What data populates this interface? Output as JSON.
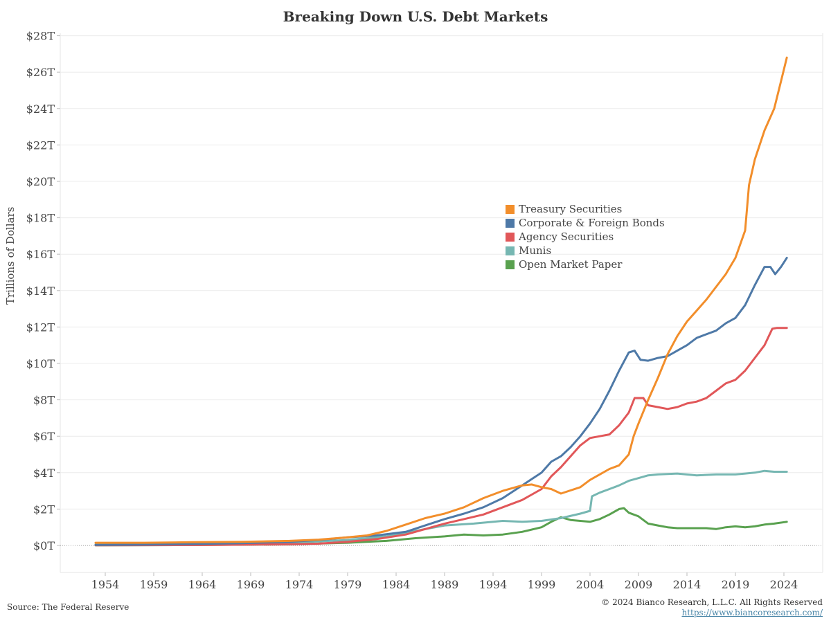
{
  "chart_data": {
    "type": "line",
    "title": "Breaking Down U.S. Debt Markets",
    "ylabel": "Trillions of Dollars",
    "xlabel": "",
    "ylim": [
      -2.5,
      28.5
    ],
    "xlim": [
      1948.8,
      2028.5
    ],
    "x_ticks": [
      1954,
      1959,
      1964,
      1969,
      1974,
      1979,
      1984,
      1989,
      1994,
      1999,
      2004,
      2009,
      2014,
      2019,
      2024
    ],
    "y_ticks": [
      0,
      2,
      4,
      6,
      8,
      10,
      12,
      14,
      16,
      18,
      20,
      22,
      24,
      26,
      28
    ],
    "y_tick_labels": [
      "$0T",
      "$2T",
      "$4T",
      "$6T",
      "$8T",
      "$10T",
      "$12T",
      "$14T",
      "$16T",
      "$18T",
      "$20T",
      "$22T",
      "$24T",
      "$26T",
      "$28T"
    ],
    "grid": "horizontal",
    "legend_position": "center-right",
    "series": [
      {
        "name": "Treasury Securities",
        "color": "#f28e2b",
        "points": [
          [
            1953,
            0.15
          ],
          [
            1958,
            0.15
          ],
          [
            1963,
            0.18
          ],
          [
            1968,
            0.2
          ],
          [
            1973,
            0.25
          ],
          [
            1976,
            0.32
          ],
          [
            1979,
            0.45
          ],
          [
            1981,
            0.55
          ],
          [
            1983,
            0.8
          ],
          [
            1985,
            1.15
          ],
          [
            1987,
            1.5
          ],
          [
            1989,
            1.75
          ],
          [
            1991,
            2.1
          ],
          [
            1993,
            2.6
          ],
          [
            1995,
            3.0
          ],
          [
            1997,
            3.3
          ],
          [
            1998,
            3.35
          ],
          [
            1999,
            3.2
          ],
          [
            2000,
            3.1
          ],
          [
            2001,
            2.85
          ],
          [
            2003,
            3.2
          ],
          [
            2004,
            3.6
          ],
          [
            2005,
            3.9
          ],
          [
            2006,
            4.2
          ],
          [
            2007,
            4.4
          ],
          [
            2008,
            5.0
          ],
          [
            2008.5,
            6.0
          ],
          [
            2009,
            6.7
          ],
          [
            2010,
            8.0
          ],
          [
            2011,
            9.2
          ],
          [
            2012,
            10.5
          ],
          [
            2013,
            11.5
          ],
          [
            2014,
            12.3
          ],
          [
            2015,
            12.9
          ],
          [
            2016,
            13.5
          ],
          [
            2017,
            14.2
          ],
          [
            2018,
            14.9
          ],
          [
            2019,
            15.8
          ],
          [
            2020,
            17.3
          ],
          [
            2020.4,
            19.8
          ],
          [
            2021,
            21.2
          ],
          [
            2022,
            22.8
          ],
          [
            2023,
            24.0
          ],
          [
            2023.7,
            25.5
          ],
          [
            2024.3,
            26.8
          ]
        ]
      },
      {
        "name": "Corporate & Foreign Bonds",
        "color": "#4e79a7",
        "points": [
          [
            1953,
            0.03
          ],
          [
            1958,
            0.05
          ],
          [
            1963,
            0.08
          ],
          [
            1968,
            0.12
          ],
          [
            1973,
            0.2
          ],
          [
            1976,
            0.3
          ],
          [
            1979,
            0.45
          ],
          [
            1982,
            0.55
          ],
          [
            1985,
            0.75
          ],
          [
            1987,
            1.1
          ],
          [
            1989,
            1.45
          ],
          [
            1991,
            1.75
          ],
          [
            1993,
            2.1
          ],
          [
            1995,
            2.6
          ],
          [
            1997,
            3.3
          ],
          [
            1999,
            4.0
          ],
          [
            2000,
            4.6
          ],
          [
            2001,
            4.9
          ],
          [
            2002,
            5.4
          ],
          [
            2003,
            6.0
          ],
          [
            2004,
            6.7
          ],
          [
            2005,
            7.5
          ],
          [
            2006,
            8.5
          ],
          [
            2007,
            9.6
          ],
          [
            2008,
            10.6
          ],
          [
            2008.6,
            10.7
          ],
          [
            2009.2,
            10.2
          ],
          [
            2010,
            10.15
          ],
          [
            2011,
            10.3
          ],
          [
            2012,
            10.4
          ],
          [
            2013,
            10.7
          ],
          [
            2014,
            11.0
          ],
          [
            2015,
            11.4
          ],
          [
            2016,
            11.6
          ],
          [
            2017,
            11.8
          ],
          [
            2018,
            12.2
          ],
          [
            2019,
            12.5
          ],
          [
            2020,
            13.2
          ],
          [
            2021,
            14.3
          ],
          [
            2022,
            15.3
          ],
          [
            2022.6,
            15.3
          ],
          [
            2023.1,
            14.9
          ],
          [
            2023.7,
            15.3
          ],
          [
            2024.3,
            15.8
          ]
        ]
      },
      {
        "name": "Agency Securities",
        "color": "#e15759",
        "points": [
          [
            1953,
            0.01
          ],
          [
            1963,
            0.02
          ],
          [
            1968,
            0.04
          ],
          [
            1973,
            0.07
          ],
          [
            1976,
            0.1
          ],
          [
            1979,
            0.2
          ],
          [
            1982,
            0.35
          ],
          [
            1985,
            0.6
          ],
          [
            1987,
            0.9
          ],
          [
            1989,
            1.2
          ],
          [
            1991,
            1.45
          ],
          [
            1993,
            1.7
          ],
          [
            1995,
            2.1
          ],
          [
            1997,
            2.5
          ],
          [
            1999,
            3.1
          ],
          [
            2000,
            3.8
          ],
          [
            2001,
            4.3
          ],
          [
            2002,
            4.9
          ],
          [
            2003,
            5.5
          ],
          [
            2004,
            5.9
          ],
          [
            2005,
            6.0
          ],
          [
            2006,
            6.1
          ],
          [
            2007,
            6.6
          ],
          [
            2008,
            7.3
          ],
          [
            2008.6,
            8.1
          ],
          [
            2009.5,
            8.1
          ],
          [
            2010,
            7.7
          ],
          [
            2011,
            7.6
          ],
          [
            2012,
            7.5
          ],
          [
            2013,
            7.6
          ],
          [
            2014,
            7.8
          ],
          [
            2015,
            7.9
          ],
          [
            2016,
            8.1
          ],
          [
            2017,
            8.5
          ],
          [
            2018,
            8.9
          ],
          [
            2019,
            9.1
          ],
          [
            2020,
            9.6
          ],
          [
            2021,
            10.3
          ],
          [
            2022,
            11.0
          ],
          [
            2022.8,
            11.9
          ],
          [
            2023.3,
            11.95
          ],
          [
            2024.3,
            11.95
          ]
        ]
      },
      {
        "name": "Munis",
        "color": "#76b7b2",
        "points": [
          [
            1953,
            0.05
          ],
          [
            1963,
            0.08
          ],
          [
            1973,
            0.15
          ],
          [
            1979,
            0.3
          ],
          [
            1983,
            0.5
          ],
          [
            1986,
            0.8
          ],
          [
            1989,
            1.1
          ],
          [
            1992,
            1.2
          ],
          [
            1995,
            1.35
          ],
          [
            1997,
            1.3
          ],
          [
            1999,
            1.35
          ],
          [
            2001,
            1.5
          ],
          [
            2003,
            1.75
          ],
          [
            2004,
            1.9
          ],
          [
            2004.2,
            2.7
          ],
          [
            2005,
            2.9
          ],
          [
            2006,
            3.1
          ],
          [
            2007,
            3.3
          ],
          [
            2008,
            3.55
          ],
          [
            2009,
            3.7
          ],
          [
            2010,
            3.85
          ],
          [
            2011,
            3.9
          ],
          [
            2013,
            3.95
          ],
          [
            2015,
            3.85
          ],
          [
            2017,
            3.9
          ],
          [
            2019,
            3.9
          ],
          [
            2020,
            3.95
          ],
          [
            2021,
            4.0
          ],
          [
            2022,
            4.1
          ],
          [
            2023,
            4.05
          ],
          [
            2024.3,
            4.05
          ]
        ]
      },
      {
        "name": "Open Market Paper",
        "color": "#59a14f",
        "points": [
          [
            1953,
            0.01
          ],
          [
            1963,
            0.02
          ],
          [
            1973,
            0.06
          ],
          [
            1979,
            0.15
          ],
          [
            1983,
            0.25
          ],
          [
            1986,
            0.4
          ],
          [
            1989,
            0.5
          ],
          [
            1991,
            0.6
          ],
          [
            1993,
            0.55
          ],
          [
            1995,
            0.6
          ],
          [
            1997,
            0.75
          ],
          [
            1999,
            1.0
          ],
          [
            2000,
            1.3
          ],
          [
            2001,
            1.55
          ],
          [
            2002,
            1.4
          ],
          [
            2003,
            1.35
          ],
          [
            2004,
            1.3
          ],
          [
            2005,
            1.45
          ],
          [
            2006,
            1.7
          ],
          [
            2007,
            2.0
          ],
          [
            2007.5,
            2.05
          ],
          [
            2008,
            1.8
          ],
          [
            2009,
            1.6
          ],
          [
            2010,
            1.2
          ],
          [
            2011,
            1.1
          ],
          [
            2012,
            1.0
          ],
          [
            2013,
            0.95
          ],
          [
            2014,
            0.95
          ],
          [
            2015,
            0.95
          ],
          [
            2016,
            0.95
          ],
          [
            2017,
            0.9
          ],
          [
            2018,
            1.0
          ],
          [
            2019,
            1.05
          ],
          [
            2020,
            1.0
          ],
          [
            2021,
            1.05
          ],
          [
            2022,
            1.15
          ],
          [
            2023,
            1.2
          ],
          [
            2024.3,
            1.3
          ]
        ]
      }
    ]
  },
  "footer": {
    "source": "Source: The Federal Reserve",
    "copyright": "© 2024 Bianco Research, L.L.C. All Rights Reserved",
    "url": "https://www.biancoresearch.com/"
  }
}
